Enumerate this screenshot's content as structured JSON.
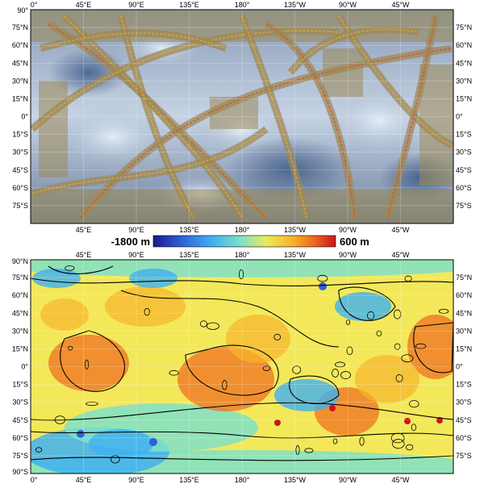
{
  "colorbar": {
    "min_label": "-1800 m",
    "max_label": "600 m",
    "colors": [
      "#1a1a8c",
      "#2f5fd6",
      "#3fb0f0",
      "#7fe0c8",
      "#e9ec5a",
      "#f6b52c",
      "#ee6a1e",
      "#c8141c"
    ]
  },
  "top_panel": {
    "lon_labels_top": [
      "0°",
      "45°E",
      "90°E",
      "135°E",
      "180°",
      "135°W",
      "90°W",
      "45°W"
    ],
    "lon_labels_bottom": [
      "45°E",
      "90°E",
      "135°E",
      "180°",
      "135°W",
      "90°W",
      "45°W"
    ],
    "lat_labels_left": [
      "90°",
      "75°N",
      "60°N",
      "45°N",
      "30°N",
      "15°N",
      "0°",
      "15°S",
      "30°S",
      "45°S",
      "60°S",
      "75°S"
    ],
    "lat_labels_right": [
      "75°N",
      "60°N",
      "45°N",
      "30°N",
      "15°N",
      "0°",
      "15°S",
      "30°S",
      "45°S",
      "60°S",
      "75°S"
    ],
    "palette": {
      "cloud": "#b9c7da",
      "terrain": "#9c8a55",
      "track": "#e8a33a",
      "track_hot": "#e24a2a"
    }
  },
  "bottom_panel": {
    "lon_labels_top": [
      "45°E",
      "90°E",
      "135°E",
      "180°",
      "135°W",
      "90°W",
      "45°W"
    ],
    "lon_labels_bottom": [
      "0°",
      "45°E",
      "90°E",
      "135°E",
      "180°",
      "135°W",
      "90°W",
      "45°W"
    ],
    "lat_labels_left": [
      "90°N",
      "75°N",
      "60°N",
      "45°N",
      "30°N",
      "15°N",
      "0°",
      "15°S",
      "30°S",
      "45°S",
      "60°S",
      "75°S",
      "90°S"
    ],
    "lat_labels_right": [
      "75°N",
      "60°N",
      "45°N",
      "30°N",
      "15°N",
      "0°",
      "15°S",
      "30°S",
      "45°S",
      "60°S",
      "75°S"
    ]
  }
}
